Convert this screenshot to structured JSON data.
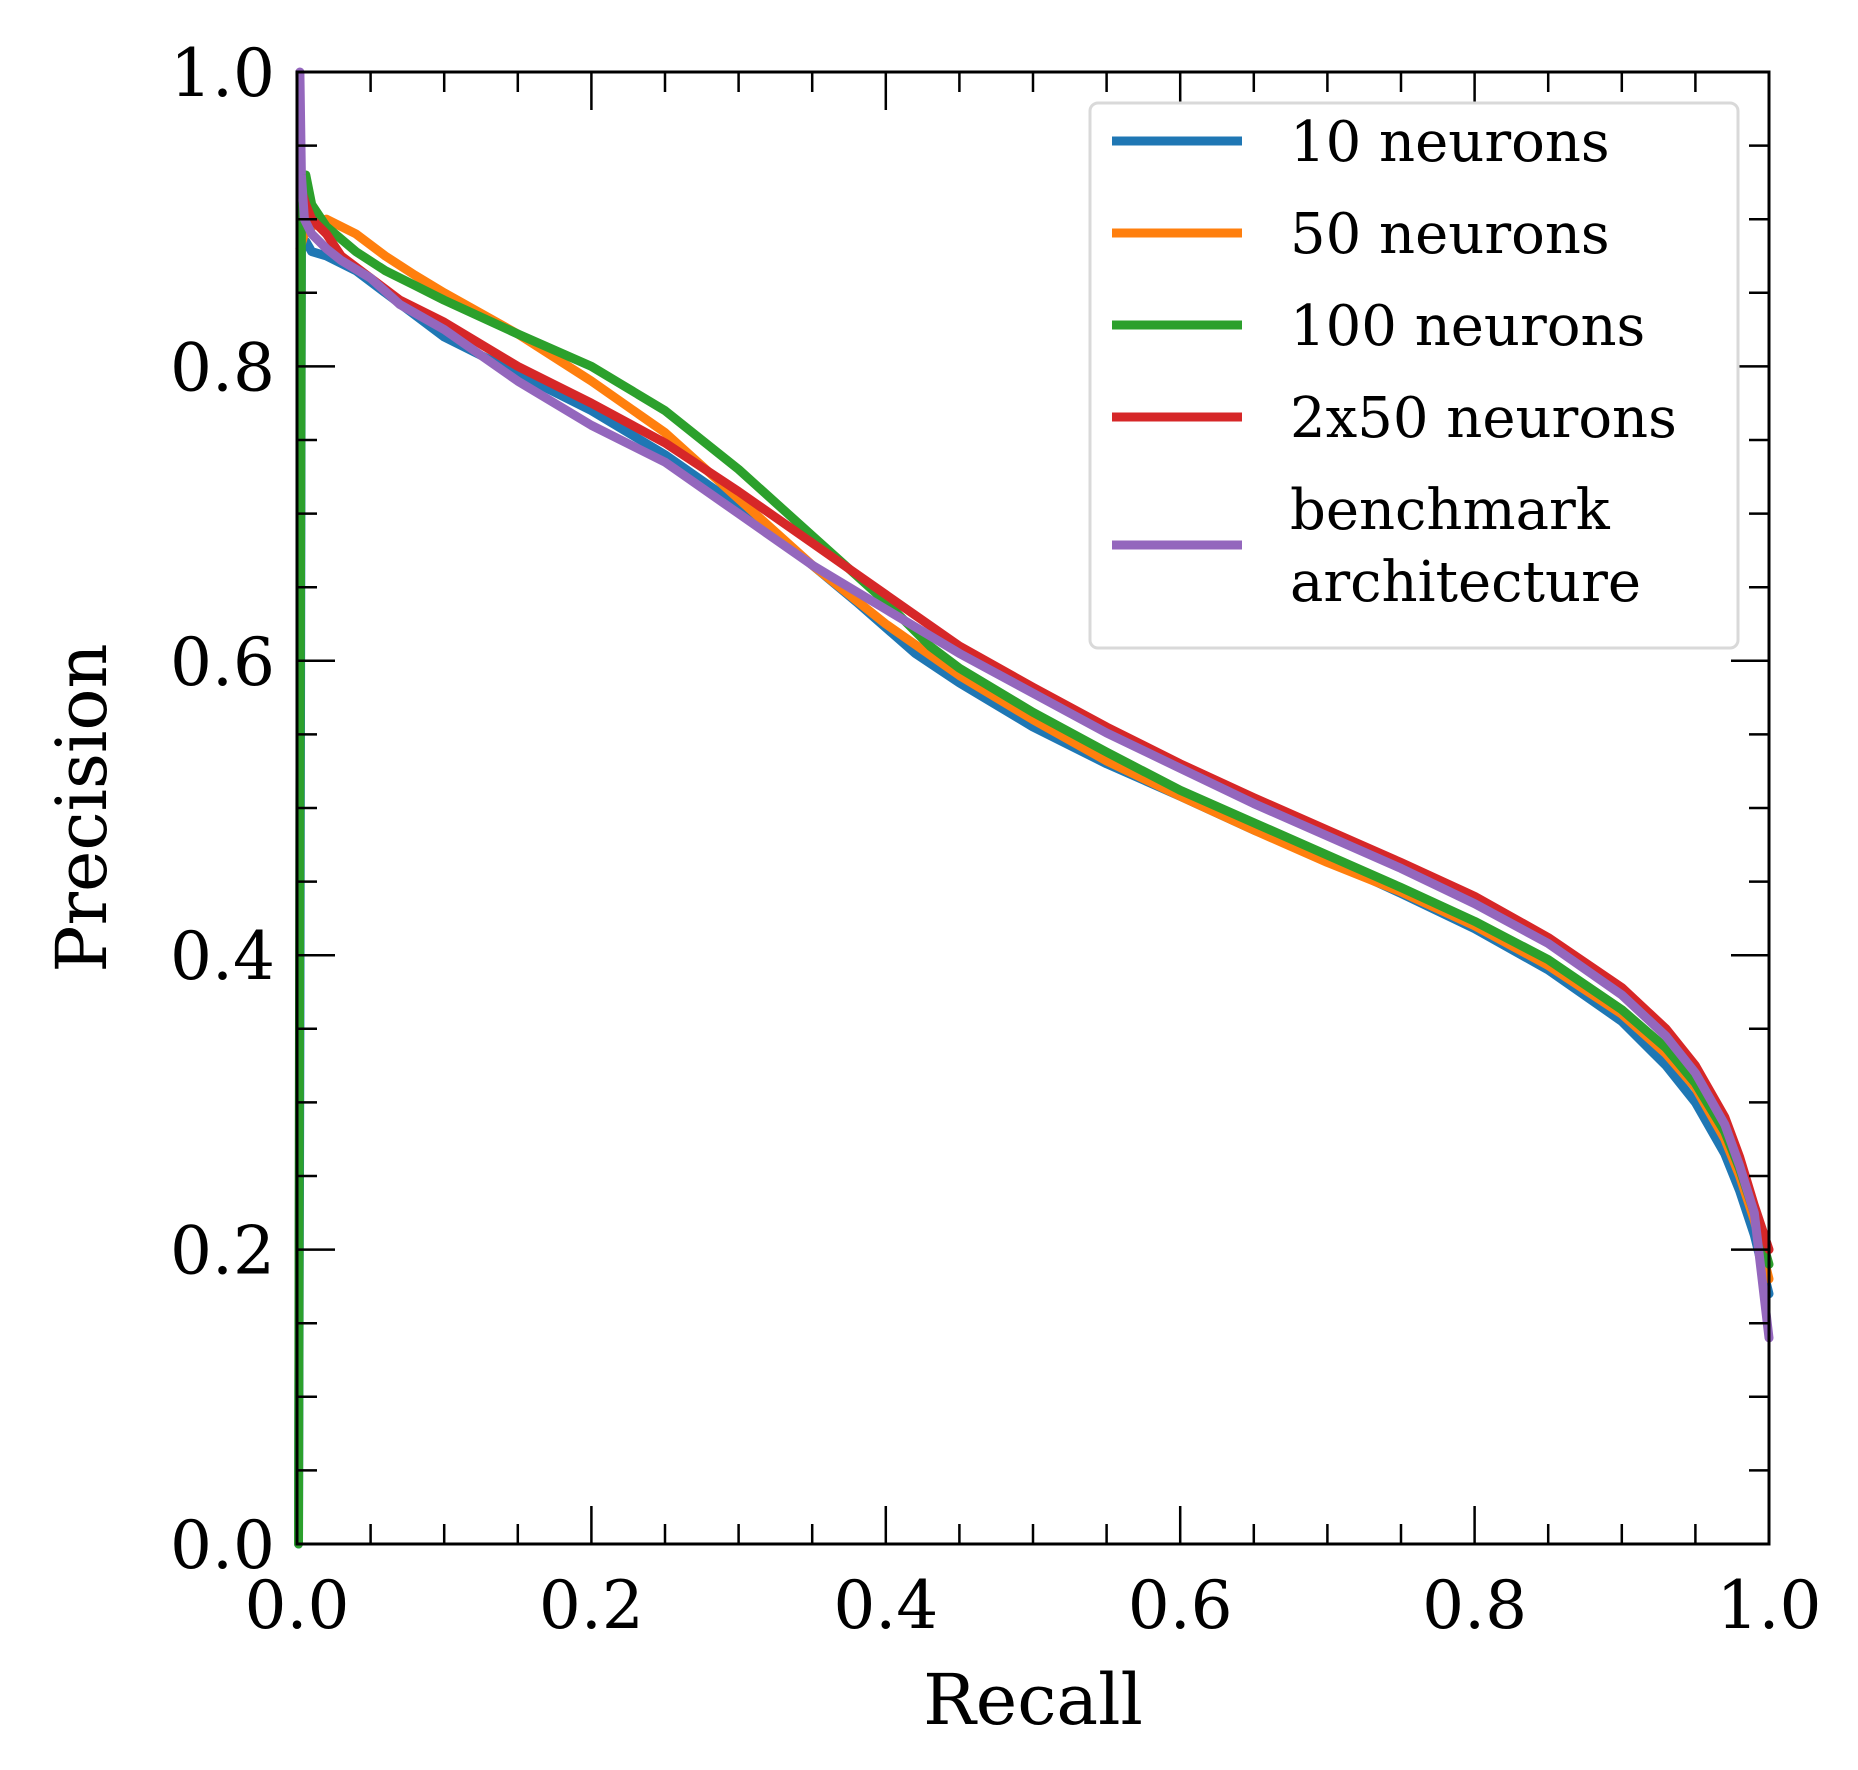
{
  "chart_data": {
    "type": "line",
    "title": "",
    "xlabel": "Recall",
    "ylabel": "Precision",
    "xlim": [
      0.0,
      1.0
    ],
    "ylim": [
      0.0,
      1.0
    ],
    "xticks": [
      "0.0",
      "0.2",
      "0.4",
      "0.6",
      "0.8",
      "1.0"
    ],
    "yticks": [
      "0.0",
      "0.2",
      "0.4",
      "0.6",
      "0.8",
      "1.0"
    ],
    "legend_position": "top-right",
    "grid": false,
    "series": [
      {
        "name": "10 neurons",
        "legend_lines": [
          "10 neurons"
        ],
        "color": "#1f77b4",
        "x": [
          0.001,
          0.002,
          0.003,
          0.006,
          0.01,
          0.02,
          0.04,
          0.06,
          0.08,
          0.1,
          0.15,
          0.2,
          0.25,
          0.3,
          0.35,
          0.38,
          0.42,
          0.45,
          0.5,
          0.55,
          0.6,
          0.65,
          0.7,
          0.75,
          0.8,
          0.85,
          0.9,
          0.93,
          0.95,
          0.97,
          0.98,
          0.99,
          0.995,
          1.0
        ],
        "y": [
          0.0,
          0.35,
          0.88,
          0.885,
          0.878,
          0.875,
          0.865,
          0.85,
          0.835,
          0.82,
          0.795,
          0.77,
          0.74,
          0.705,
          0.665,
          0.64,
          0.605,
          0.585,
          0.555,
          0.53,
          0.508,
          0.485,
          0.465,
          0.442,
          0.418,
          0.39,
          0.355,
          0.325,
          0.3,
          0.265,
          0.24,
          0.21,
          0.19,
          0.17
        ]
      },
      {
        "name": "50 neurons",
        "legend_lines": [
          "50 neurons"
        ],
        "color": "#ff7f0e",
        "x": [
          0.002,
          0.005,
          0.01,
          0.02,
          0.04,
          0.06,
          0.08,
          0.1,
          0.15,
          0.2,
          0.25,
          0.3,
          0.35,
          0.4,
          0.45,
          0.5,
          0.55,
          0.6,
          0.65,
          0.7,
          0.75,
          0.8,
          0.85,
          0.9,
          0.93,
          0.95,
          0.97,
          0.98,
          0.99,
          1.0
        ],
        "y": [
          0.88,
          0.89,
          0.895,
          0.9,
          0.89,
          0.875,
          0.862,
          0.85,
          0.822,
          0.79,
          0.755,
          0.71,
          0.665,
          0.625,
          0.59,
          0.56,
          0.532,
          0.508,
          0.485,
          0.463,
          0.443,
          0.42,
          0.393,
          0.36,
          0.333,
          0.31,
          0.275,
          0.25,
          0.22,
          0.18
        ]
      },
      {
        "name": "100 neurons",
        "legend_lines": [
          "100 neurons"
        ],
        "color": "#2ca02c",
        "x": [
          0.001,
          0.002,
          0.003,
          0.006,
          0.01,
          0.02,
          0.04,
          0.06,
          0.08,
          0.1,
          0.15,
          0.2,
          0.25,
          0.3,
          0.35,
          0.4,
          0.43,
          0.45,
          0.5,
          0.55,
          0.6,
          0.65,
          0.7,
          0.75,
          0.8,
          0.85,
          0.9,
          0.93,
          0.95,
          0.97,
          0.98,
          0.99,
          1.0
        ],
        "y": [
          0.0,
          0.5,
          0.9,
          0.93,
          0.91,
          0.895,
          0.878,
          0.865,
          0.855,
          0.845,
          0.822,
          0.8,
          0.77,
          0.73,
          0.685,
          0.64,
          0.61,
          0.595,
          0.565,
          0.538,
          0.512,
          0.49,
          0.468,
          0.446,
          0.423,
          0.397,
          0.363,
          0.337,
          0.313,
          0.28,
          0.255,
          0.225,
          0.19
        ]
      },
      {
        "name": "2x50 neurons",
        "legend_lines": [
          "2x50 neurons"
        ],
        "color": "#d62728",
        "x": [
          0.003,
          0.006,
          0.01,
          0.02,
          0.03,
          0.05,
          0.07,
          0.1,
          0.15,
          0.2,
          0.25,
          0.3,
          0.35,
          0.4,
          0.45,
          0.5,
          0.55,
          0.6,
          0.65,
          0.7,
          0.75,
          0.8,
          0.85,
          0.9,
          0.93,
          0.95,
          0.97,
          0.98,
          0.99,
          1.0
        ],
        "y": [
          0.92,
          0.91,
          0.9,
          0.89,
          0.875,
          0.86,
          0.845,
          0.83,
          0.8,
          0.775,
          0.748,
          0.715,
          0.68,
          0.645,
          0.61,
          0.582,
          0.555,
          0.53,
          0.507,
          0.485,
          0.463,
          0.44,
          0.412,
          0.378,
          0.35,
          0.325,
          0.29,
          0.263,
          0.23,
          0.2
        ]
      },
      {
        "name": "benchmark architecture",
        "legend_lines": [
          "benchmark",
          "architecture"
        ],
        "color": "#9467bd",
        "x": [
          0.002,
          0.003,
          0.005,
          0.01,
          0.02,
          0.03,
          0.05,
          0.07,
          0.1,
          0.15,
          0.2,
          0.25,
          0.3,
          0.35,
          0.4,
          0.45,
          0.5,
          0.55,
          0.6,
          0.65,
          0.7,
          0.75,
          0.8,
          0.85,
          0.9,
          0.93,
          0.95,
          0.97,
          0.98,
          0.99,
          1.0
        ],
        "y": [
          1.0,
          0.93,
          0.9,
          0.89,
          0.88,
          0.872,
          0.86,
          0.842,
          0.825,
          0.79,
          0.76,
          0.735,
          0.7,
          0.665,
          0.635,
          0.605,
          0.578,
          0.551,
          0.527,
          0.503,
          0.481,
          0.459,
          0.435,
          0.408,
          0.373,
          0.345,
          0.32,
          0.285,
          0.257,
          0.225,
          0.14
        ]
      }
    ]
  }
}
